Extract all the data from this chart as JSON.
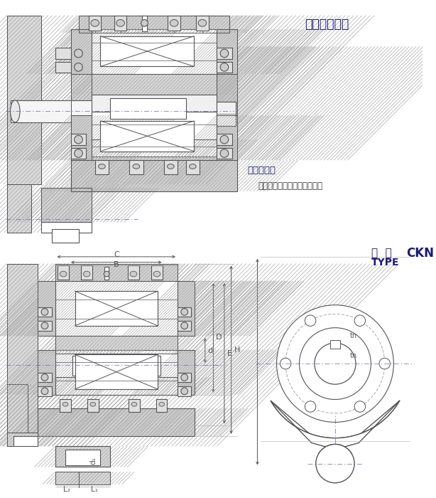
{
  "title_top": "安装参考范例",
  "title_type_label": "型  号",
  "title_type_value": "CKN",
  "title_type_sub": "TYPE",
  "install_req_title": "安装要求：",
  "install_req_body": "拐臂轴与配合孔要留有间隙。",
  "line_color": "#2a2a6a",
  "draw_color": "#555555",
  "hatch_color": "#aaaaaa",
  "bg_color": "#ffffff",
  "text_dark": "#1a1a7a",
  "text_normal": "#333333"
}
